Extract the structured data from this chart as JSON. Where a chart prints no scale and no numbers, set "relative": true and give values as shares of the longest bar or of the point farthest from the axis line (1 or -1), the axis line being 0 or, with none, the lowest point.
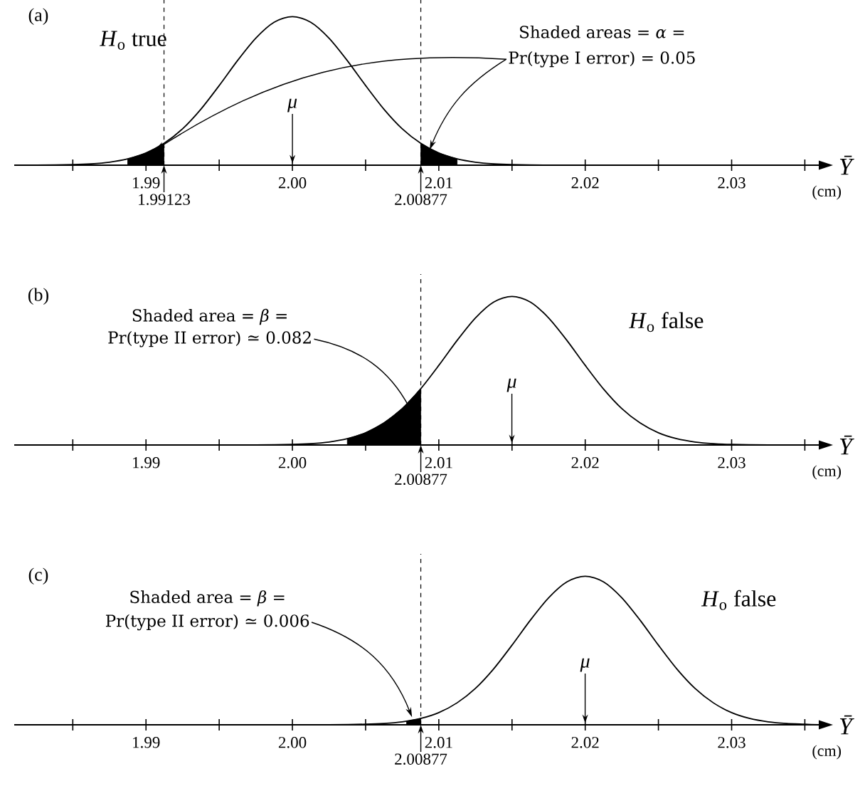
{
  "chart_data": [
    {
      "type": "line",
      "title": "(a)",
      "xlabel": "*Ȳ*",
      "relative": true,
      "marker": "none",
      "line_style": "solid",
      "xlim": [
        1.981,
        2.036
      ],
      "xticks": [
        {
          "value": 1.985,
          "label": null
        },
        1.99,
        {
          "value": 1.995,
          "label": null
        },
        {
          "value": 2.0,
          "label": "2.00"
        },
        {
          "value": 2.005,
          "label": null
        },
        2.01,
        {
          "value": 2.015,
          "label": null
        },
        2.02,
        {
          "value": 2.025,
          "label": null
        },
        2.03,
        {
          "value": 2.035,
          "label": null
        }
      ],
      "series": [
        {
          "color": "#000000",
          "x": [
            1.9825,
            1.985,
            1.98625,
            1.9875,
            1.98875,
            1.99,
            1.99125,
            1.9925,
            1.99375,
            1.995,
            1.99625,
            1.9975,
            1.99875,
            2.0,
            2.00125,
            2.0025,
            2.00375,
            2.005,
            2.00625,
            2.0075,
            2.00875,
            2.01,
            2.01125,
            2.0125,
            2.01375,
            2.015,
            2.0175
          ],
          "values": [
            0,
            0.004,
            0.009,
            0.02,
            0.042,
            0.082,
            0.148,
            0.245,
            0.377,
            0.536,
            0.704,
            0.855,
            0.962,
            1,
            0.962,
            0.855,
            0.704,
            0.536,
            0.377,
            0.245,
            0.148,
            0.082,
            0.042,
            0.02,
            0.009,
            0.004,
            0
          ]
        },
        {
          "type": "area",
          "color": "#000000",
          "x": [
            1.98875,
            1.99,
            1.99123
          ],
          "values": [
            0.042,
            0.082,
            0.146
          ]
        },
        {
          "type": "area",
          "color": "#000000",
          "x": [
            2.00877,
            2.01,
            2.01125
          ],
          "values": [
            0.146,
            0.082,
            0.042
          ]
        }
      ],
      "ref_lines": [
        {
          "axis": "x",
          "value": 1.99123,
          "label": "1.99123",
          "line_style": "dashed"
        },
        {
          "axis": "x",
          "value": 2.00877,
          "label": "2.00877",
          "line_style": "dashed"
        }
      ],
      "annotations": [
        "*H*$_{o}$ true",
        "Shaded areas = *α* =",
        "Pr(type I error) = 0.05",
        "*μ*",
        "(cm)"
      ]
    },
    {
      "type": "line",
      "title": "(b)",
      "xlabel": "*Ȳ*",
      "relative": true,
      "marker": "none",
      "line_style": "solid",
      "xlim": [
        1.981,
        2.036
      ],
      "xticks": [
        {
          "value": 1.985,
          "label": null
        },
        1.99,
        {
          "value": 1.995,
          "label": null
        },
        {
          "value": 2.0,
          "label": "2.00"
        },
        {
          "value": 2.005,
          "label": null
        },
        2.01,
        {
          "value": 2.015,
          "label": null
        },
        2.02,
        {
          "value": 2.025,
          "label": null
        },
        2.03,
        {
          "value": 2.035,
          "label": null
        }
      ],
      "series": [
        {
          "color": "#000000",
          "x": [
            1.9975,
            2.0,
            2.00125,
            2.0025,
            2.00375,
            2.005,
            2.00625,
            2.0075,
            2.00875,
            2.01,
            2.01125,
            2.0125,
            2.01375,
            2.015,
            2.01625,
            2.0175,
            2.01875,
            2.02,
            2.02125,
            2.0225,
            2.02375,
            2.025,
            2.02625,
            2.0275,
            2.02875,
            2.03,
            2.0325
          ],
          "values": [
            0,
            0.004,
            0.009,
            0.02,
            0.042,
            0.082,
            0.148,
            0.245,
            0.377,
            0.536,
            0.704,
            0.855,
            0.962,
            1,
            0.962,
            0.855,
            0.704,
            0.536,
            0.377,
            0.245,
            0.148,
            0.082,
            0.042,
            0.02,
            0.009,
            0.004,
            0
          ]
        },
        {
          "type": "area",
          "color": "#000000",
          "x": [
            2.00375,
            2.005,
            2.00625,
            2.0075,
            2.00877
          ],
          "values": [
            0.042,
            0.082,
            0.148,
            0.245,
            0.379
          ]
        }
      ],
      "ref_lines": [
        {
          "axis": "x",
          "value": 2.00877,
          "label": "2.00877",
          "line_style": "dashed"
        }
      ],
      "annotations": [
        "*H*$_{o}$ false",
        "Shaded area = *β* =",
        "Pr(type II error) ≃ 0.082",
        "*μ*",
        "(cm)"
      ]
    },
    {
      "type": "line",
      "title": "(c)",
      "xlabel": "*Ȳ*",
      "relative": true,
      "marker": "none",
      "line_style": "solid",
      "xlim": [
        1.981,
        2.036
      ],
      "xticks": [
        {
          "value": 1.985,
          "label": null
        },
        1.99,
        {
          "value": 1.995,
          "label": null
        },
        {
          "value": 2.0,
          "label": "2.00"
        },
        {
          "value": 2.005,
          "label": null
        },
        2.01,
        {
          "value": 2.015,
          "label": null
        },
        2.02,
        {
          "value": 2.025,
          "label": null
        },
        2.03,
        {
          "value": 2.035,
          "label": null
        }
      ],
      "series": [
        {
          "color": "#000000",
          "x": [
            2.0025,
            2.005,
            2.00625,
            2.0075,
            2.00875,
            2.01,
            2.01125,
            2.0125,
            2.01375,
            2.015,
            2.01625,
            2.0175,
            2.01875,
            2.02,
            2.02125,
            2.0225,
            2.02375,
            2.025,
            2.02625,
            2.0275,
            2.02875,
            2.03,
            2.03125,
            2.0325,
            2.03375,
            2.035,
            2.036
          ],
          "values": [
            0,
            0.004,
            0.009,
            0.02,
            0.042,
            0.082,
            0.148,
            0.245,
            0.377,
            0.536,
            0.704,
            0.855,
            0.962,
            1,
            0.962,
            0.855,
            0.704,
            0.536,
            0.377,
            0.245,
            0.148,
            0.082,
            0.042,
            0.02,
            0.009,
            0.004,
            0
          ]
        },
        {
          "type": "area",
          "color": "#000000",
          "x": [
            2.0078,
            2.00877
          ],
          "values": [
            0.024,
            0.043
          ]
        }
      ],
      "ref_lines": [
        {
          "axis": "x",
          "value": 2.00877,
          "label": "2.00877",
          "line_style": "dashed"
        }
      ],
      "annotations": [
        "*H*$_{o}$ false",
        "Shaded area = *β* =",
        "Pr(type II error) ≃ 0.006",
        "*μ*",
        "(cm)"
      ]
    }
  ]
}
